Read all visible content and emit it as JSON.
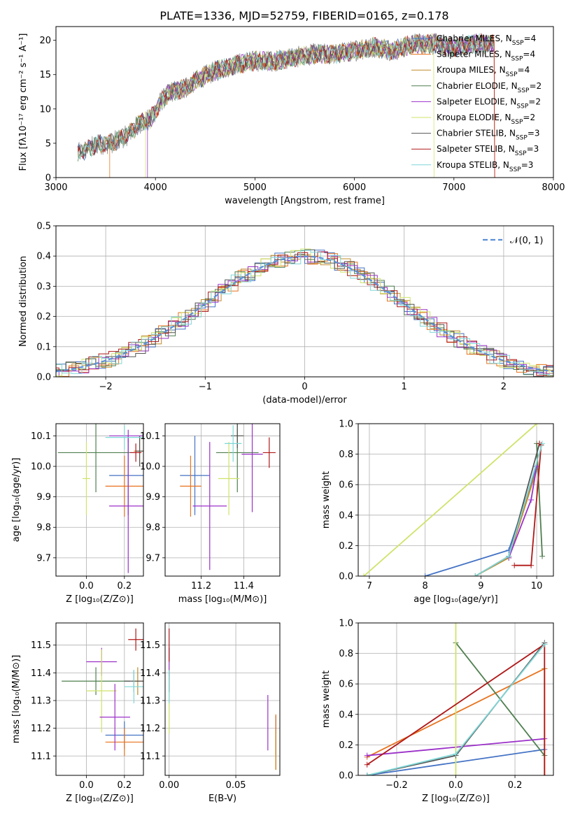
{
  "figure_title": "PLATE=1336, MJD=52759, FIBERID=0165, z=0.178",
  "colors": {
    "Chabrier MILES": "#4472c4",
    "Salpeter MILES": "#e8731f",
    "Kroupa MILES": "#c08a2b",
    "Chabrier ELODIE": "#4f7f4f",
    "Salpeter ELODIE": "#9b30c9",
    "Kroupa ELODIE": "#cfe36a",
    "Chabrier STELIB": "#555555",
    "Salpeter STELIB": "#b01818",
    "Kroupa STELIB": "#7fd7d7"
  },
  "chart_data": [
    {
      "type": "line",
      "title": "PLATE=1336, MJD=52759, FIBERID=0165, z=0.178",
      "xlabel": "wavelength [Angstrom, rest frame]",
      "ylabel": "Flux [fλ10⁻¹⁷ erg cm⁻² s⁻¹ A⁻¹]",
      "xlim": [
        3000,
        8000
      ],
      "ylim": [
        0,
        22
      ],
      "xticks": [
        "3000",
        "4000",
        "5000",
        "6000",
        "7000",
        "8000"
      ],
      "yticks": [
        "0",
        "5",
        "10",
        "15",
        "20"
      ],
      "legend_position": "top-right",
      "legend": [
        "Chabrier MILES, N_SSP=4",
        "Salpeter MILES, N_SSP=4",
        "Kroupa MILES, N_SSP=4",
        "Chabrier ELODIE, N_SSP=2",
        "Salpeter ELODIE, N_SSP=2",
        "Kroupa ELODIE, N_SSP=2",
        "Chabrier STELIB, N_SSP=3",
        "Salpeter STELIB, N_SSP=3",
        "Kroupa STELIB, N_SSP=3"
      ],
      "spectrum_envelope": {
        "x": [
          3220,
          3400,
          3550,
          3700,
          3850,
          3950,
          4050,
          4150,
          4300,
          4450,
          4600,
          4800,
          5000,
          5200,
          5400,
          5600,
          5800,
          6000,
          6200,
          6400,
          6600,
          6800,
          7000,
          7200,
          7400
        ],
        "y": [
          3.5,
          4.8,
          5.0,
          6.0,
          8.0,
          8.5,
          11.0,
          12.5,
          13.0,
          14.5,
          15.5,
          16.5,
          17.0,
          17.0,
          17.5,
          18.0,
          18.0,
          18.5,
          19.0,
          18.5,
          19.5,
          19.5,
          19.0,
          19.5,
          19.5
        ]
      }
    },
    {
      "type": "line",
      "xlabel": "(data-model)/error",
      "ylabel": "Normed distribution",
      "xlim": [
        -2.5,
        2.5
      ],
      "ylim": [
        0,
        0.5
      ],
      "xticks": [
        "−2",
        "−1",
        "0",
        "1",
        "2"
      ],
      "yticks": [
        "0.0",
        "0.1",
        "0.2",
        "0.3",
        "0.4",
        "0.5"
      ],
      "legend_position": "top-right",
      "reference_curve": {
        "name": "𝒩(0, 1)",
        "style": "dashed"
      },
      "histogram_bin_width": 0.1
    },
    {
      "type": "scatter",
      "xlabel": "Z [log₁₀(Z/Z⊙)]",
      "ylabel": "age  [log₁₀(age/yr)]",
      "xlim": [
        -0.16,
        0.3
      ],
      "ylim": [
        9.64,
        10.14
      ],
      "xticks": [
        "0.0",
        "0.2"
      ],
      "yticks": [
        "9.7",
        "9.8",
        "9.9",
        "10.0",
        "10.1"
      ],
      "points": [
        {
          "series": "Chabrier MILES",
          "x": 0.22,
          "y": 9.97,
          "xerr": 0.1,
          "yerr": 0.13
        },
        {
          "series": "Salpeter MILES",
          "x": 0.2,
          "y": 9.935,
          "xerr": 0.1,
          "yerr": 0.1
        },
        {
          "series": "Kroupa MILES",
          "x": 0.28,
          "y": 10.05,
          "xerr": 0.03,
          "yerr": 0.05
        },
        {
          "series": "Chabrier ELODIE",
          "x": 0.05,
          "y": 10.045,
          "xerr": 0.2,
          "yerr": 0.13
        },
        {
          "series": "Salpeter ELODIE",
          "x": 0.22,
          "y": 10.1,
          "xerr": 0.1,
          "yerr": 0.02
        },
        {
          "series": "Kroupa ELODIE",
          "x": 0.0,
          "y": 9.96,
          "xerr": 0.02,
          "yerr": 0.12
        },
        {
          "series": "Chabrier STELIB",
          "x": 0.28,
          "y": 10.05,
          "xerr": 0.02,
          "yerr": 0.05
        },
        {
          "series": "Salpeter STELIB",
          "x": 0.26,
          "y": 10.045,
          "xerr": 0.03,
          "yerr": 0.03
        },
        {
          "series": "Kroupa STELIB",
          "x": 0.2,
          "y": 10.095,
          "xerr": 0.1,
          "yerr": 0.04
        },
        {
          "series": "Salpeter ELODIE",
          "x": 0.22,
          "y": 9.87,
          "xerr": 0.1,
          "yerr": 0.22
        }
      ]
    },
    {
      "type": "scatter",
      "xlabel": "mass [log₁₀(M/M⊙)]",
      "xlim": [
        11.03,
        11.57
      ],
      "ylim": [
        9.64,
        10.14
      ],
      "xticks": [
        "11.2",
        "11.4"
      ],
      "yticks": [
        "9.7",
        "9.8",
        "9.9",
        "10.0",
        "10.1"
      ],
      "points": [
        {
          "series": "Chabrier MILES",
          "x": 11.17,
          "y": 9.97,
          "xerr": 0.07,
          "yerr": 0.13
        },
        {
          "series": "Salpeter MILES",
          "x": 11.15,
          "y": 9.935,
          "xerr": 0.05,
          "yerr": 0.1
        },
        {
          "series": "Kroupa MILES",
          "x": 11.37,
          "y": 10.1,
          "xerr": 0.03,
          "yerr": 0.02
        },
        {
          "series": "Chabrier ELODIE",
          "x": 11.37,
          "y": 10.045,
          "xerr": 0.1,
          "yerr": 0.13
        },
        {
          "series": "Salpeter ELODIE",
          "x": 11.44,
          "y": 10.04,
          "xerr": 0.05,
          "yerr": 0.19
        },
        {
          "series": "Kroupa ELODIE",
          "x": 11.33,
          "y": 9.96,
          "xerr": 0.05,
          "yerr": 0.12
        },
        {
          "series": "Chabrier STELIB",
          "x": 11.37,
          "y": 10.1,
          "xerr": 0.03,
          "yerr": 0.04
        },
        {
          "series": "Salpeter STELIB",
          "x": 11.52,
          "y": 10.045,
          "xerr": 0.03,
          "yerr": 0.05
        },
        {
          "series": "Kroupa STELIB",
          "x": 11.35,
          "y": 10.075,
          "xerr": 0.04,
          "yerr": 0.06
        },
        {
          "series": "Salpeter ELODIE",
          "x": 11.24,
          "y": 9.87,
          "xerr": 0.08,
          "yerr": 0.21
        }
      ]
    },
    {
      "type": "line",
      "xlabel": "age  [log₁₀(age/yr)]",
      "ylabel": "mass weight",
      "xlim": [
        6.8,
        10.3
      ],
      "ylim": [
        0,
        1.0
      ],
      "xticks": [
        "7",
        "8",
        "9",
        "10"
      ],
      "yticks": [
        "0.0",
        "0.2",
        "0.4",
        "0.6",
        "0.8",
        "1.0"
      ],
      "series": [
        {
          "name": "Chabrier MILES",
          "x": [
            8.0,
            9.5,
            10.0
          ],
          "y": [
            0.0,
            0.17,
            0.72
          ]
        },
        {
          "name": "Salpeter MILES",
          "x": [
            8.9,
            9.5,
            10.0
          ],
          "y": [
            0.0,
            0.13,
            0.7
          ]
        },
        {
          "name": "Kroupa MILES",
          "x": [
            8.9,
            9.5,
            10.0
          ],
          "y": [
            0.0,
            0.12,
            0.7
          ]
        },
        {
          "name": "Chabrier ELODIE",
          "x": [
            10.0,
            10.1
          ],
          "y": [
            0.87,
            0.13
          ]
        },
        {
          "name": "Salpeter ELODIE",
          "x": [
            9.5,
            9.9,
            10.0
          ],
          "y": [
            0.12,
            0.5,
            0.72
          ]
        },
        {
          "name": "Kroupa ELODIE",
          "x": [
            6.9,
            10.0
          ],
          "y": [
            0.0,
            1.0
          ]
        },
        {
          "name": "Chabrier STELIB",
          "x": [
            8.9,
            9.5,
            10.05
          ],
          "y": [
            0.0,
            0.13,
            0.87
          ]
        },
        {
          "name": "Salpeter STELIB",
          "x": [
            9.6,
            9.9,
            10.08,
            10.05
          ],
          "y": [
            0.07,
            0.07,
            0.86,
            0.87
          ]
        },
        {
          "name": "Kroupa STELIB",
          "x": [
            8.9,
            9.5,
            10.1
          ],
          "y": [
            0.0,
            0.13,
            0.87
          ]
        }
      ]
    },
    {
      "type": "scatter",
      "xlabel": "Z [log₁₀(Z/Z⊙)]",
      "ylabel": "mass [log₁₀(M/M⊙)]",
      "xlim": [
        -0.16,
        0.3
      ],
      "ylim": [
        11.03,
        11.58
      ],
      "xticks": [
        "0.0",
        "0.2"
      ],
      "yticks": [
        "11.1",
        "11.2",
        "11.3",
        "11.4",
        "11.5"
      ],
      "points": [
        {
          "series": "Chabrier MILES",
          "x": 0.2,
          "y": 11.175,
          "xerr": 0.1,
          "yerr": 0.05
        },
        {
          "series": "Salpeter MILES",
          "x": 0.2,
          "y": 11.15,
          "xerr": 0.1,
          "yerr": 0.05
        },
        {
          "series": "Kroupa MILES",
          "x": 0.27,
          "y": 11.37,
          "xerr": 0.03,
          "yerr": 0.05
        },
        {
          "series": "Chabrier ELODIE",
          "x": 0.05,
          "y": 11.37,
          "xerr": 0.18,
          "yerr": 0.05
        },
        {
          "series": "Salpeter ELODIE",
          "x": 0.08,
          "y": 11.44,
          "xerr": 0.08,
          "yerr": 0.05
        },
        {
          "series": "Kroupa ELODIE",
          "x": 0.08,
          "y": 11.335,
          "xerr": 0.08,
          "yerr": 0.15
        },
        {
          "series": "Chabrier STELIB",
          "x": 0.25,
          "y": 11.37,
          "xerr": 0.05,
          "yerr": 0.04
        },
        {
          "series": "Salpeter STELIB",
          "x": 0.26,
          "y": 11.52,
          "xerr": 0.04,
          "yerr": 0.04
        },
        {
          "series": "Kroupa STELIB",
          "x": 0.25,
          "y": 11.35,
          "xerr": 0.05,
          "yerr": 0.06
        },
        {
          "series": "Salpeter ELODIE",
          "x": 0.15,
          "y": 11.24,
          "xerr": 0.08,
          "yerr": 0.12
        }
      ]
    },
    {
      "type": "scatter",
      "xlabel": "E(B-V)",
      "xlim": [
        -0.003,
        0.083
      ],
      "ylim": [
        11.03,
        11.58
      ],
      "xticks": [
        "0.00",
        "0.05"
      ],
      "yticks": [
        "11.1",
        "11.2",
        "11.3",
        "11.4",
        "11.5"
      ],
      "points": [
        {
          "series": "Kroupa ELODIE",
          "x": 0.0,
          "y": 11.33,
          "yerr": 0.15
        },
        {
          "series": "Salpeter ELODIE",
          "x": 0.0,
          "y": 11.44,
          "yerr": 0.05
        },
        {
          "series": "Salpeter STELIB",
          "x": 0.0,
          "y": 11.5,
          "yerr": 0.06
        },
        {
          "series": "Chabrier STELIB",
          "x": 0.0,
          "y": 11.37,
          "yerr": 0.04
        },
        {
          "series": "Kroupa STELIB",
          "x": 0.0,
          "y": 11.35,
          "yerr": 0.06
        },
        {
          "series": "Chabrier MILES",
          "x": 0.08,
          "y": 11.175,
          "yerr": 0.07
        },
        {
          "series": "Salpeter MILES",
          "x": 0.08,
          "y": 11.15,
          "yerr": 0.1
        },
        {
          "series": "Kroupa MILES",
          "x": 0.08,
          "y": 11.12,
          "yerr": 0.07
        },
        {
          "series": "Salpeter ELODIE",
          "x": 0.074,
          "y": 11.22,
          "yerr": 0.1
        }
      ]
    },
    {
      "type": "line",
      "xlabel": "Z [log₁₀(Z/Z⊙)]",
      "ylabel": "mass weight",
      "xlim": [
        -0.33,
        0.33
      ],
      "ylim": [
        0,
        1.0
      ],
      "xticks": [
        "−0.2",
        "0.0",
        "0.2"
      ],
      "yticks": [
        "0.0",
        "0.2",
        "0.4",
        "0.6",
        "0.8",
        "1.0"
      ],
      "series": [
        {
          "name": "Chabrier MILES",
          "x": [
            -0.3,
            0.3
          ],
          "y": [
            0.0,
            0.17
          ]
        },
        {
          "name": "Salpeter MILES",
          "x": [
            -0.3,
            0.3
          ],
          "y": [
            0.12,
            0.7
          ]
        },
        {
          "name": "Kroupa MILES",
          "x": [
            0.3,
            0.3
          ],
          "y": [
            0.0,
            0.7
          ]
        },
        {
          "name": "Chabrier ELODIE",
          "x": [
            0.0,
            0.3
          ],
          "y": [
            0.87,
            0.13
          ]
        },
        {
          "name": "Salpeter ELODIE",
          "x": [
            -0.3,
            0.3
          ],
          "y": [
            0.13,
            0.24
          ]
        },
        {
          "name": "Kroupa ELODIE",
          "x": [
            0.0,
            0.0
          ],
          "y": [
            0.0,
            1.0
          ]
        },
        {
          "name": "Chabrier STELIB",
          "x": [
            -0.3,
            0.0,
            0.3
          ],
          "y": [
            0.0,
            0.13,
            0.87
          ]
        },
        {
          "name": "Salpeter STELIB",
          "x": [
            -0.3,
            0.3,
            0.3
          ],
          "y": [
            0.07,
            0.86,
            0.0
          ]
        },
        {
          "name": "Kroupa STELIB",
          "x": [
            -0.3,
            0.0,
            0.3
          ],
          "y": [
            0.0,
            0.14,
            0.86
          ]
        }
      ]
    }
  ]
}
